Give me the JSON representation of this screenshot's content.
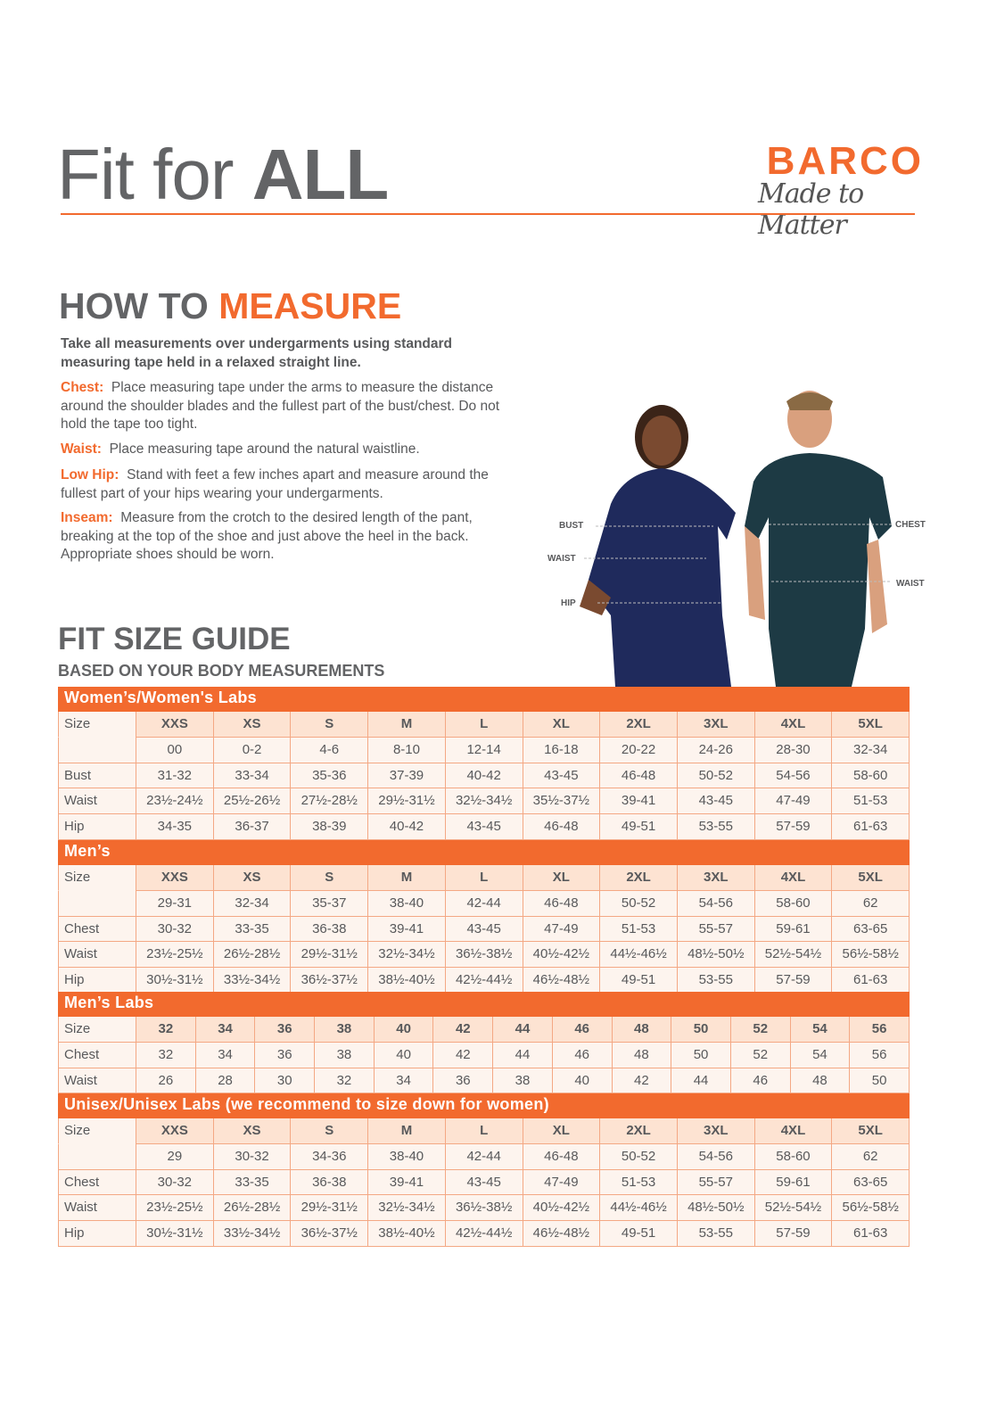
{
  "header": {
    "title_part1": "Fit for ",
    "title_part2": "ALL",
    "logo_brand": "BARCO",
    "logo_tagline": "Made to Matter"
  },
  "measure": {
    "heading_part1": "HOW TO ",
    "heading_part2": "MEASURE",
    "intro": "Take all measurements over undergarments using standard measuring tape held in a relaxed straight line.",
    "items": [
      {
        "label": "Chest:",
        "text": "Place measuring tape under the arms to measure the distance around the shoulder blades and the fullest part of the bust/chest. Do not hold the tape too tight."
      },
      {
        "label": "Waist:",
        "text": "Place measuring tape around the natural waistline."
      },
      {
        "label": "Low Hip:",
        "text": "Stand with feet a few inches apart and measure around the fullest part of your hips wearing your undergarments."
      },
      {
        "label": "Inseam:",
        "text": "Measure from the crotch to the desired length of the pant, breaking at the top of the shoe and just above the heel in the back. Appropriate shoes should be worn."
      }
    ]
  },
  "figure": {
    "labels": {
      "bust": "BUST",
      "waist_w": "WAIST",
      "hip": "HIP",
      "chest": "CHEST",
      "waist_m": "WAIST"
    },
    "colors": {
      "women_scrub": "#1f2a5c",
      "men_scrub": "#1d3a44"
    }
  },
  "guide": {
    "title": "FIT SIZE GUIDE",
    "subtitle": "BASED ON YOUR BODY MEASUREMENTS"
  },
  "colors": {
    "accent": "#f26a2e",
    "size_row": "#fde3d2",
    "cell": "#fdf4ee",
    "border": "#f4a884"
  },
  "tables": [
    {
      "title": "Women’s/Women's Labs",
      "rows": [
        {
          "label": "Size",
          "type": "size",
          "cells": [
            "XXS",
            "XS",
            "S",
            "M",
            "L",
            "XL",
            "2XL",
            "3XL",
            "4XL",
            "5XL"
          ]
        },
        {
          "label": "",
          "cells": [
            "00",
            "0-2",
            "4-6",
            "8-10",
            "12-14",
            "16-18",
            "20-22",
            "24-26",
            "28-30",
            "32-34"
          ]
        },
        {
          "label": "Bust",
          "cells": [
            "31-32",
            "33-34",
            "35-36",
            "37-39",
            "40-42",
            "43-45",
            "46-48",
            "50-52",
            "54-56",
            "58-60"
          ]
        },
        {
          "label": "Waist",
          "cells": [
            "23½-24½",
            "25½-26½",
            "27½-28½",
            "29½-31½",
            "32½-34½",
            "35½-37½",
            "39-41",
            "43-45",
            "47-49",
            "51-53"
          ]
        },
        {
          "label": "Hip",
          "cells": [
            "34-35",
            "36-37",
            "38-39",
            "40-42",
            "43-45",
            "46-48",
            "49-51",
            "53-55",
            "57-59",
            "61-63"
          ]
        }
      ]
    },
    {
      "title": "Men’s",
      "rows": [
        {
          "label": "Size",
          "type": "size",
          "cells": [
            "XXS",
            "XS",
            "S",
            "M",
            "L",
            "XL",
            "2XL",
            "3XL",
            "4XL",
            "5XL"
          ]
        },
        {
          "label": "",
          "cells": [
            "29-31",
            "32-34",
            "35-37",
            "38-40",
            "42-44",
            "46-48",
            "50-52",
            "54-56",
            "58-60",
            "62"
          ]
        },
        {
          "label": "Chest",
          "cells": [
            "30-32",
            "33-35",
            "36-38",
            "39-41",
            "43-45",
            "47-49",
            "51-53",
            "55-57",
            "59-61",
            "63-65"
          ]
        },
        {
          "label": "Waist",
          "cells": [
            "23½-25½",
            "26½-28½",
            "29½-31½",
            "32½-34½",
            "36½-38½",
            "40½-42½",
            "44½-46½",
            "48½-50½",
            "52½-54½",
            "56½-58½"
          ]
        },
        {
          "label": "Hip",
          "cells": [
            "30½-31½",
            "33½-34½",
            "36½-37½",
            "38½-40½",
            "42½-44½",
            "46½-48½",
            "49-51",
            "53-55",
            "57-59",
            "61-63"
          ]
        }
      ]
    },
    {
      "title": "Men’s Labs",
      "rows": [
        {
          "label": "Size",
          "type": "size",
          "cells": [
            "32",
            "34",
            "36",
            "38",
            "40",
            "42",
            "44",
            "46",
            "48",
            "50",
            "52",
            "54",
            "56"
          ]
        },
        {
          "label": "Chest",
          "cells": [
            "32",
            "34",
            "36",
            "38",
            "40",
            "42",
            "44",
            "46",
            "48",
            "50",
            "52",
            "54",
            "56"
          ]
        },
        {
          "label": "Waist",
          "cells": [
            "26",
            "28",
            "30",
            "32",
            "34",
            "36",
            "38",
            "40",
            "42",
            "44",
            "46",
            "48",
            "50"
          ]
        }
      ]
    },
    {
      "title": "Unisex/Unisex Labs (we recommend to size down for women)",
      "rows": [
        {
          "label": "Size",
          "type": "size",
          "cells": [
            "XXS",
            "XS",
            "S",
            "M",
            "L",
            "XL",
            "2XL",
            "3XL",
            "4XL",
            "5XL"
          ]
        },
        {
          "label": "",
          "cells": [
            "29",
            "30-32",
            "34-36",
            "38-40",
            "42-44",
            "46-48",
            "50-52",
            "54-56",
            "58-60",
            "62"
          ]
        },
        {
          "label": "Chest",
          "cells": [
            "30-32",
            "33-35",
            "36-38",
            "39-41",
            "43-45",
            "47-49",
            "51-53",
            "55-57",
            "59-61",
            "63-65"
          ]
        },
        {
          "label": "Waist",
          "cells": [
            "23½-25½",
            "26½-28½",
            "29½-31½",
            "32½-34½",
            "36½-38½",
            "40½-42½",
            "44½-46½",
            "48½-50½",
            "52½-54½",
            "56½-58½"
          ]
        },
        {
          "label": "Hip",
          "cells": [
            "30½-31½",
            "33½-34½",
            "36½-37½",
            "38½-40½",
            "42½-44½",
            "46½-48½",
            "49-51",
            "53-55",
            "57-59",
            "61-63"
          ]
        }
      ]
    }
  ]
}
